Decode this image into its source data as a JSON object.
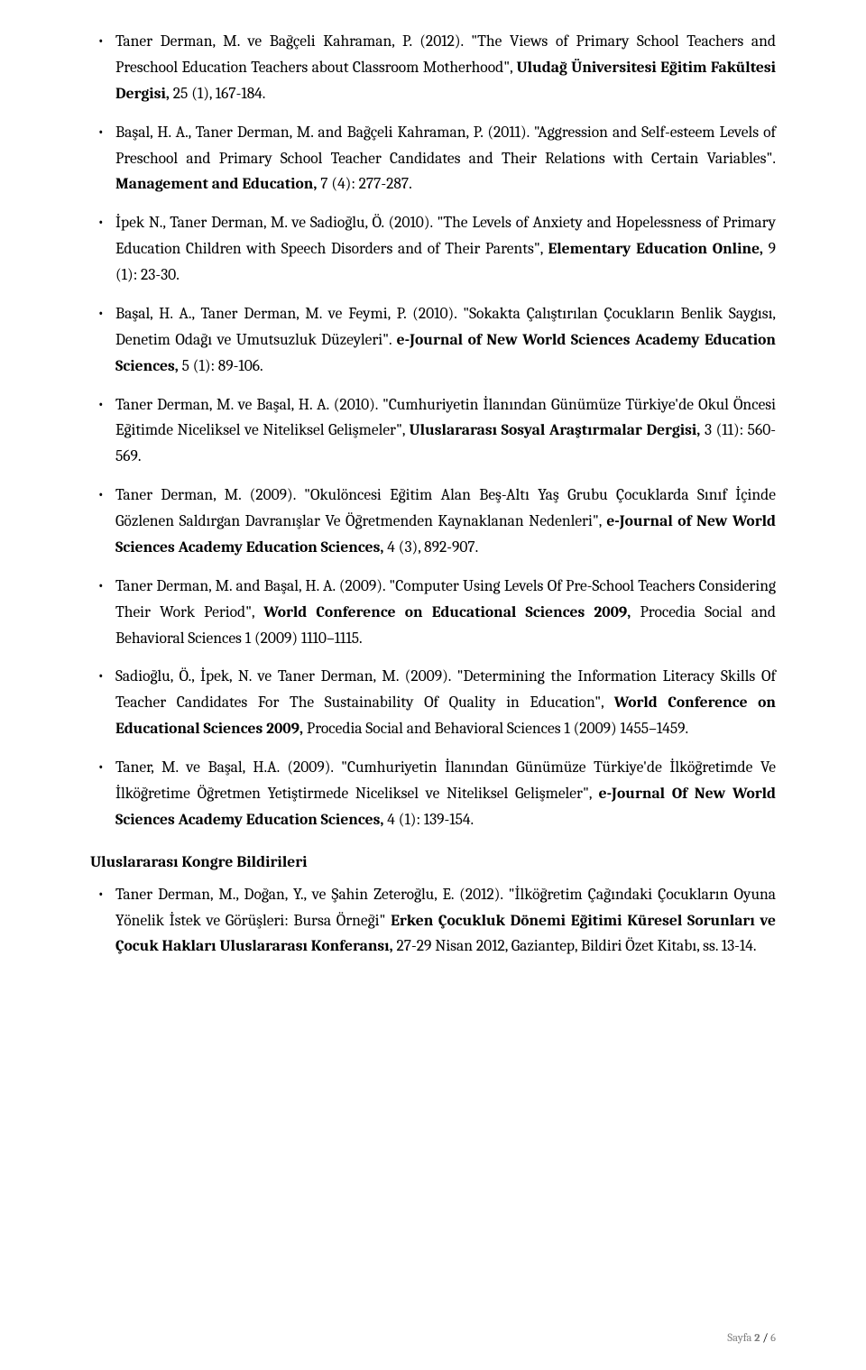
{
  "page": {
    "text_color": "#000000",
    "bg_color": "#ffffff",
    "body_fontsize": 17.5,
    "line_height": 1.65,
    "footer_color": "#7f7f7f",
    "footer_fontsize": 12.5
  },
  "publications": [
    {
      "segments": [
        {
          "text": "Taner Derman, M. ve Bağçeli Kahraman, P. (2012). \"The Views of Primary School Teachers and Preschool Education Teachers about Classroom Motherhood\", "
        },
        {
          "text": "Uludağ Üniversitesi Eğitim Fakültesi Dergisi,",
          "bold": true
        },
        {
          "text": " 25 (1), 167-184."
        }
      ]
    },
    {
      "segments": [
        {
          "text": "Başal, H. A., Taner Derman, M. and Bağçeli Kahraman, P. (2011). \"Aggression and Self-esteem Levels of Preschool and Primary School Teacher Candidates and Their Relations with Certain Variables\". "
        },
        {
          "text": "Management and Education,",
          "bold": true
        },
        {
          "text": " 7 (4): 277-287."
        }
      ]
    },
    {
      "segments": [
        {
          "text": "İpek N., Taner Derman, M. ve Sadioğlu, Ö. (2010). \"The Levels of Anxiety and Hopelessness of Primary Education Children with Speech Disorders and of Their Parents\", "
        },
        {
          "text": "Elementary Education Online,",
          "bold": true
        },
        {
          "text": " 9 (1): 23-30."
        }
      ]
    },
    {
      "segments": [
        {
          "text": "Başal, H. A., Taner Derman, M. ve Feymi, P. (2010). \"Sokakta Çalıştırılan Çocukların Benlik Saygısı, Denetim Odağı ve Umutsuzluk Düzeyleri\". "
        },
        {
          "text": "e-Journal of New World Sciences Academy Education Sciences,",
          "bold": true
        },
        {
          "text": " 5 (1): 89-106."
        }
      ]
    },
    {
      "segments": [
        {
          "text": "Taner Derman, M. ve Başal, H. A. (2010). \"Cumhuriyetin İlanından Günümüze Türkiye'de Okul Öncesi Eğitimde Niceliksel ve Niteliksel Gelişmeler\", "
        },
        {
          "text": "Uluslararası Sosyal Araştırmalar Dergisi,",
          "bold": true
        },
        {
          "text": " 3 (11): 560-569."
        }
      ]
    },
    {
      "segments": [
        {
          "text": "Taner Derman, M. (2009). \"Okulöncesi Eğitim Alan Beş-Altı Yaş Grubu Çocuklarda Sınıf İçinde Gözlenen Saldırgan Davranışlar Ve Öğretmenden Kaynaklanan Nedenleri\", "
        },
        {
          "text": "e-Journal of New World Sciences Academy Education Sciences,",
          "bold": true
        },
        {
          "text": " 4 (3), 892-907."
        }
      ]
    },
    {
      "segments": [
        {
          "text": "Taner Derman, M. and Başal, H. A. (2009). \"Computer Using Levels Of Pre-School Teachers Considering Their Work Period\", "
        },
        {
          "text": "World Conference on Educational Sciences 2009,",
          "bold": true
        },
        {
          "text": " Procedia Social and Behavioral Sciences 1 (2009) 1110–1115."
        }
      ]
    },
    {
      "segments": [
        {
          "text": "Sadioğlu, Ö., İpek, N. ve Taner Derman, M. (2009). \"Determining the Information Literacy Skills Of Teacher Candidates For The Sustainability Of Quality in Education\", "
        },
        {
          "text": "World Conference on Educational Sciences 2009,",
          "bold": true
        },
        {
          "text": " Procedia Social and Behavioral Sciences 1 (2009) 1455–1459."
        }
      ]
    },
    {
      "segments": [
        {
          "text": "Taner, M. ve Başal, H.A. (2009). \"Cumhuriyetin İlanından Günümüze Türkiye'de İlköğretimde Ve İlköğretime Öğretmen Yetiştirmede Niceliksel ve Niteliksel Gelişmeler\", "
        },
        {
          "text": "e-Journal Of New World Sciences Academy Education Sciences,",
          "bold": true
        },
        {
          "text": " 4 (1): 139-154."
        }
      ]
    }
  ],
  "section_heading": "Uluslararası Kongre Bildirileri",
  "congress": [
    {
      "segments": [
        {
          "text": "Taner Derman, M., Doğan, Y., ve Şahin Zeteroğlu, E. (2012). \"İlköğretim Çağındaki Çocukların Oyuna Yönelik İstek ve Görüşleri: Bursa Örneği\" "
        },
        {
          "text": "Erken Çocukluk Dönemi Eğitimi Küresel Sorunları ve Çocuk Hakları Uluslararası Konferansı,",
          "bold": true
        },
        {
          "text": " 27-29 Nisan 2012, Gaziantep, Bildiri Özet Kitabı, ss. 13-14."
        }
      ]
    }
  ],
  "footer": {
    "label": "Sayfa ",
    "current": "2",
    "sep": " / ",
    "total": "6"
  }
}
